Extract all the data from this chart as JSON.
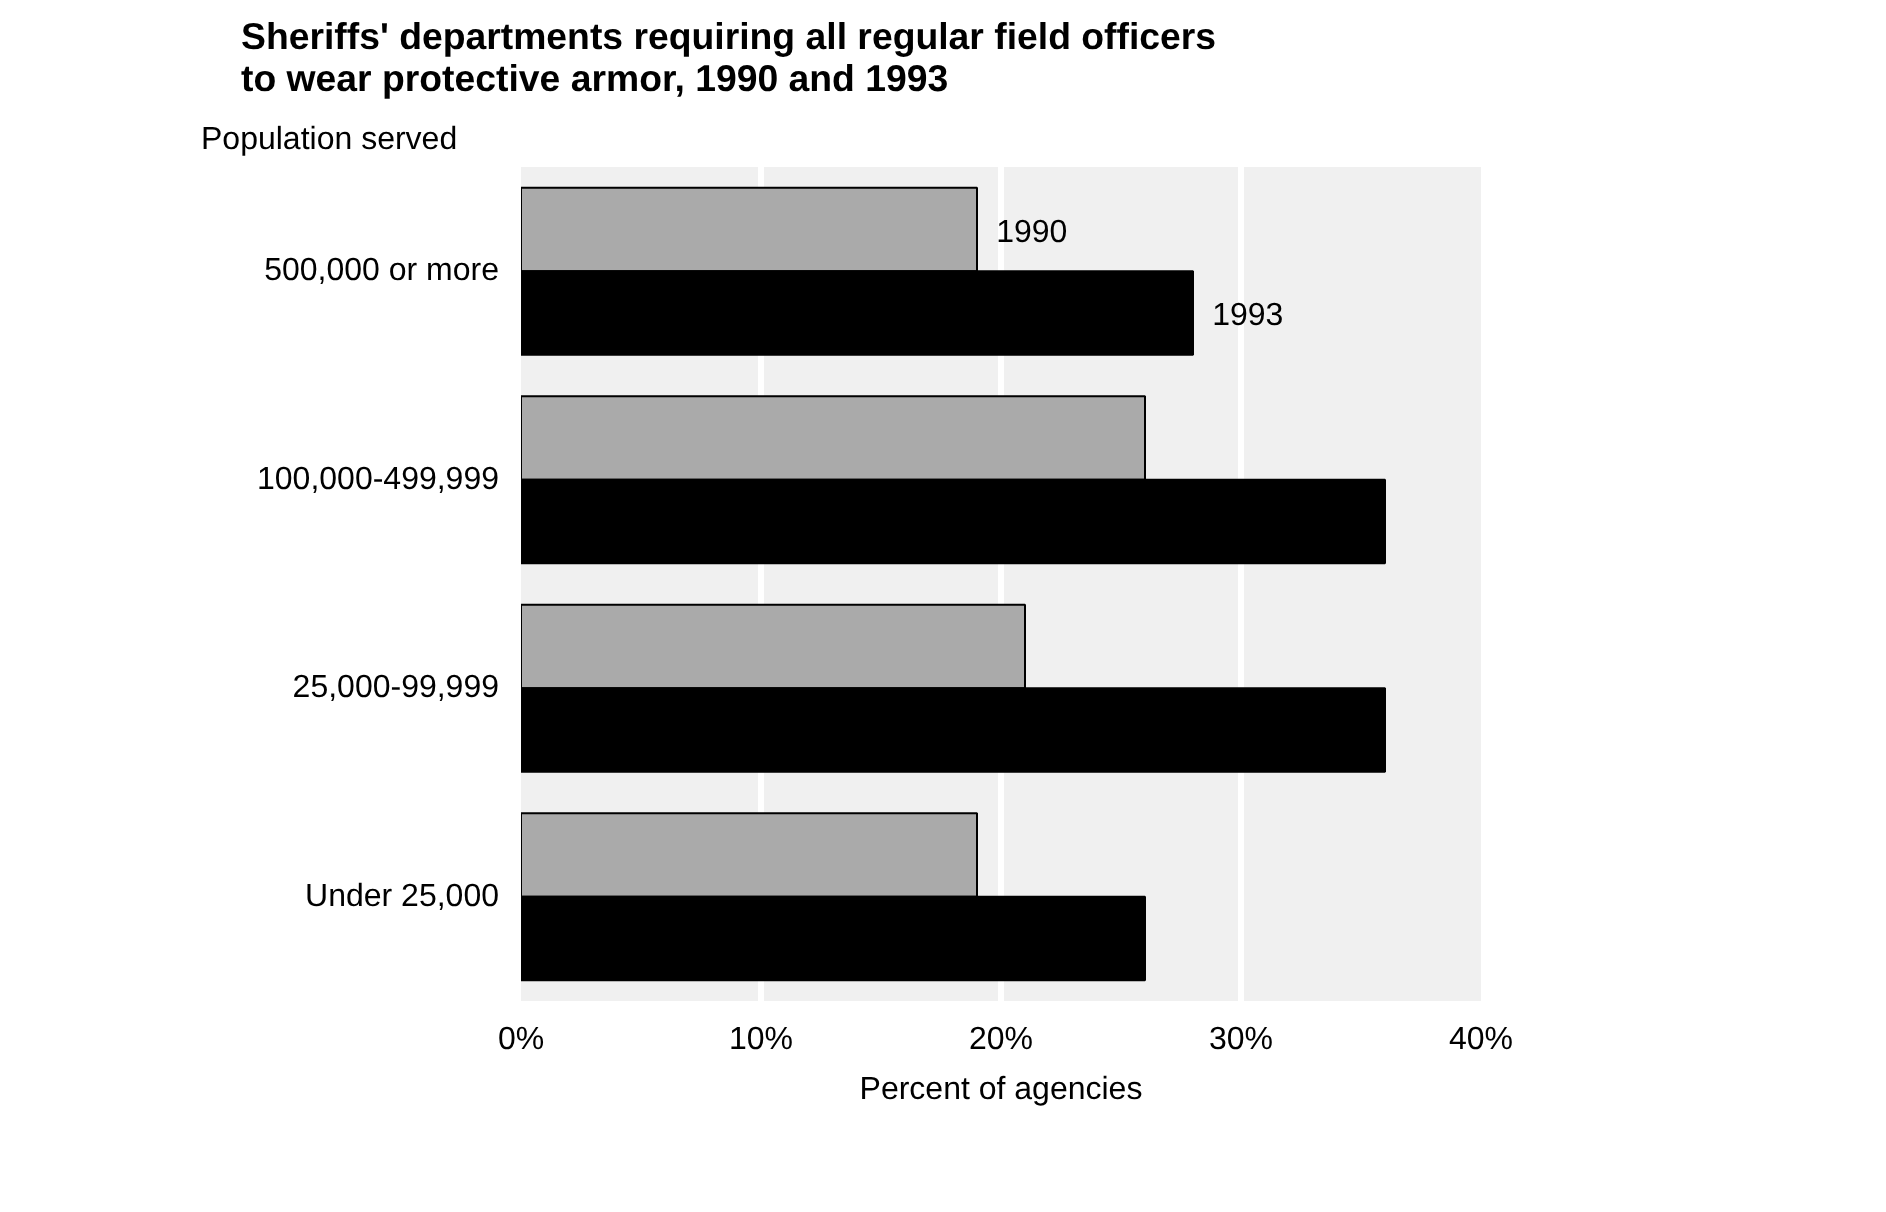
{
  "chart_data": {
    "type": "bar",
    "orientation": "horizontal",
    "title": "Sheriffs' departments requiring all regular field officers\nto wear protective armor, 1990 and 1993",
    "ylabel": "Population served",
    "xlabel": "Percent of agencies",
    "categories": [
      "500,000 or more",
      "100,000-499,999",
      "25,000-99,999",
      "Under 25,000"
    ],
    "series": [
      {
        "name": "1990",
        "color": "#aaaaaa",
        "values": [
          19,
          26,
          21,
          19
        ]
      },
      {
        "name": "1993",
        "color": "#000000",
        "values": [
          28,
          36,
          36,
          26
        ]
      }
    ],
    "xlim": [
      0,
      40
    ],
    "xticks": [
      {
        "value": 0,
        "label": "0%"
      },
      {
        "value": 10,
        "label": "10%"
      },
      {
        "value": 20,
        "label": "20%"
      },
      {
        "value": 30,
        "label": "30%"
      },
      {
        "value": 40,
        "label": "40%"
      }
    ],
    "grid": "x"
  }
}
